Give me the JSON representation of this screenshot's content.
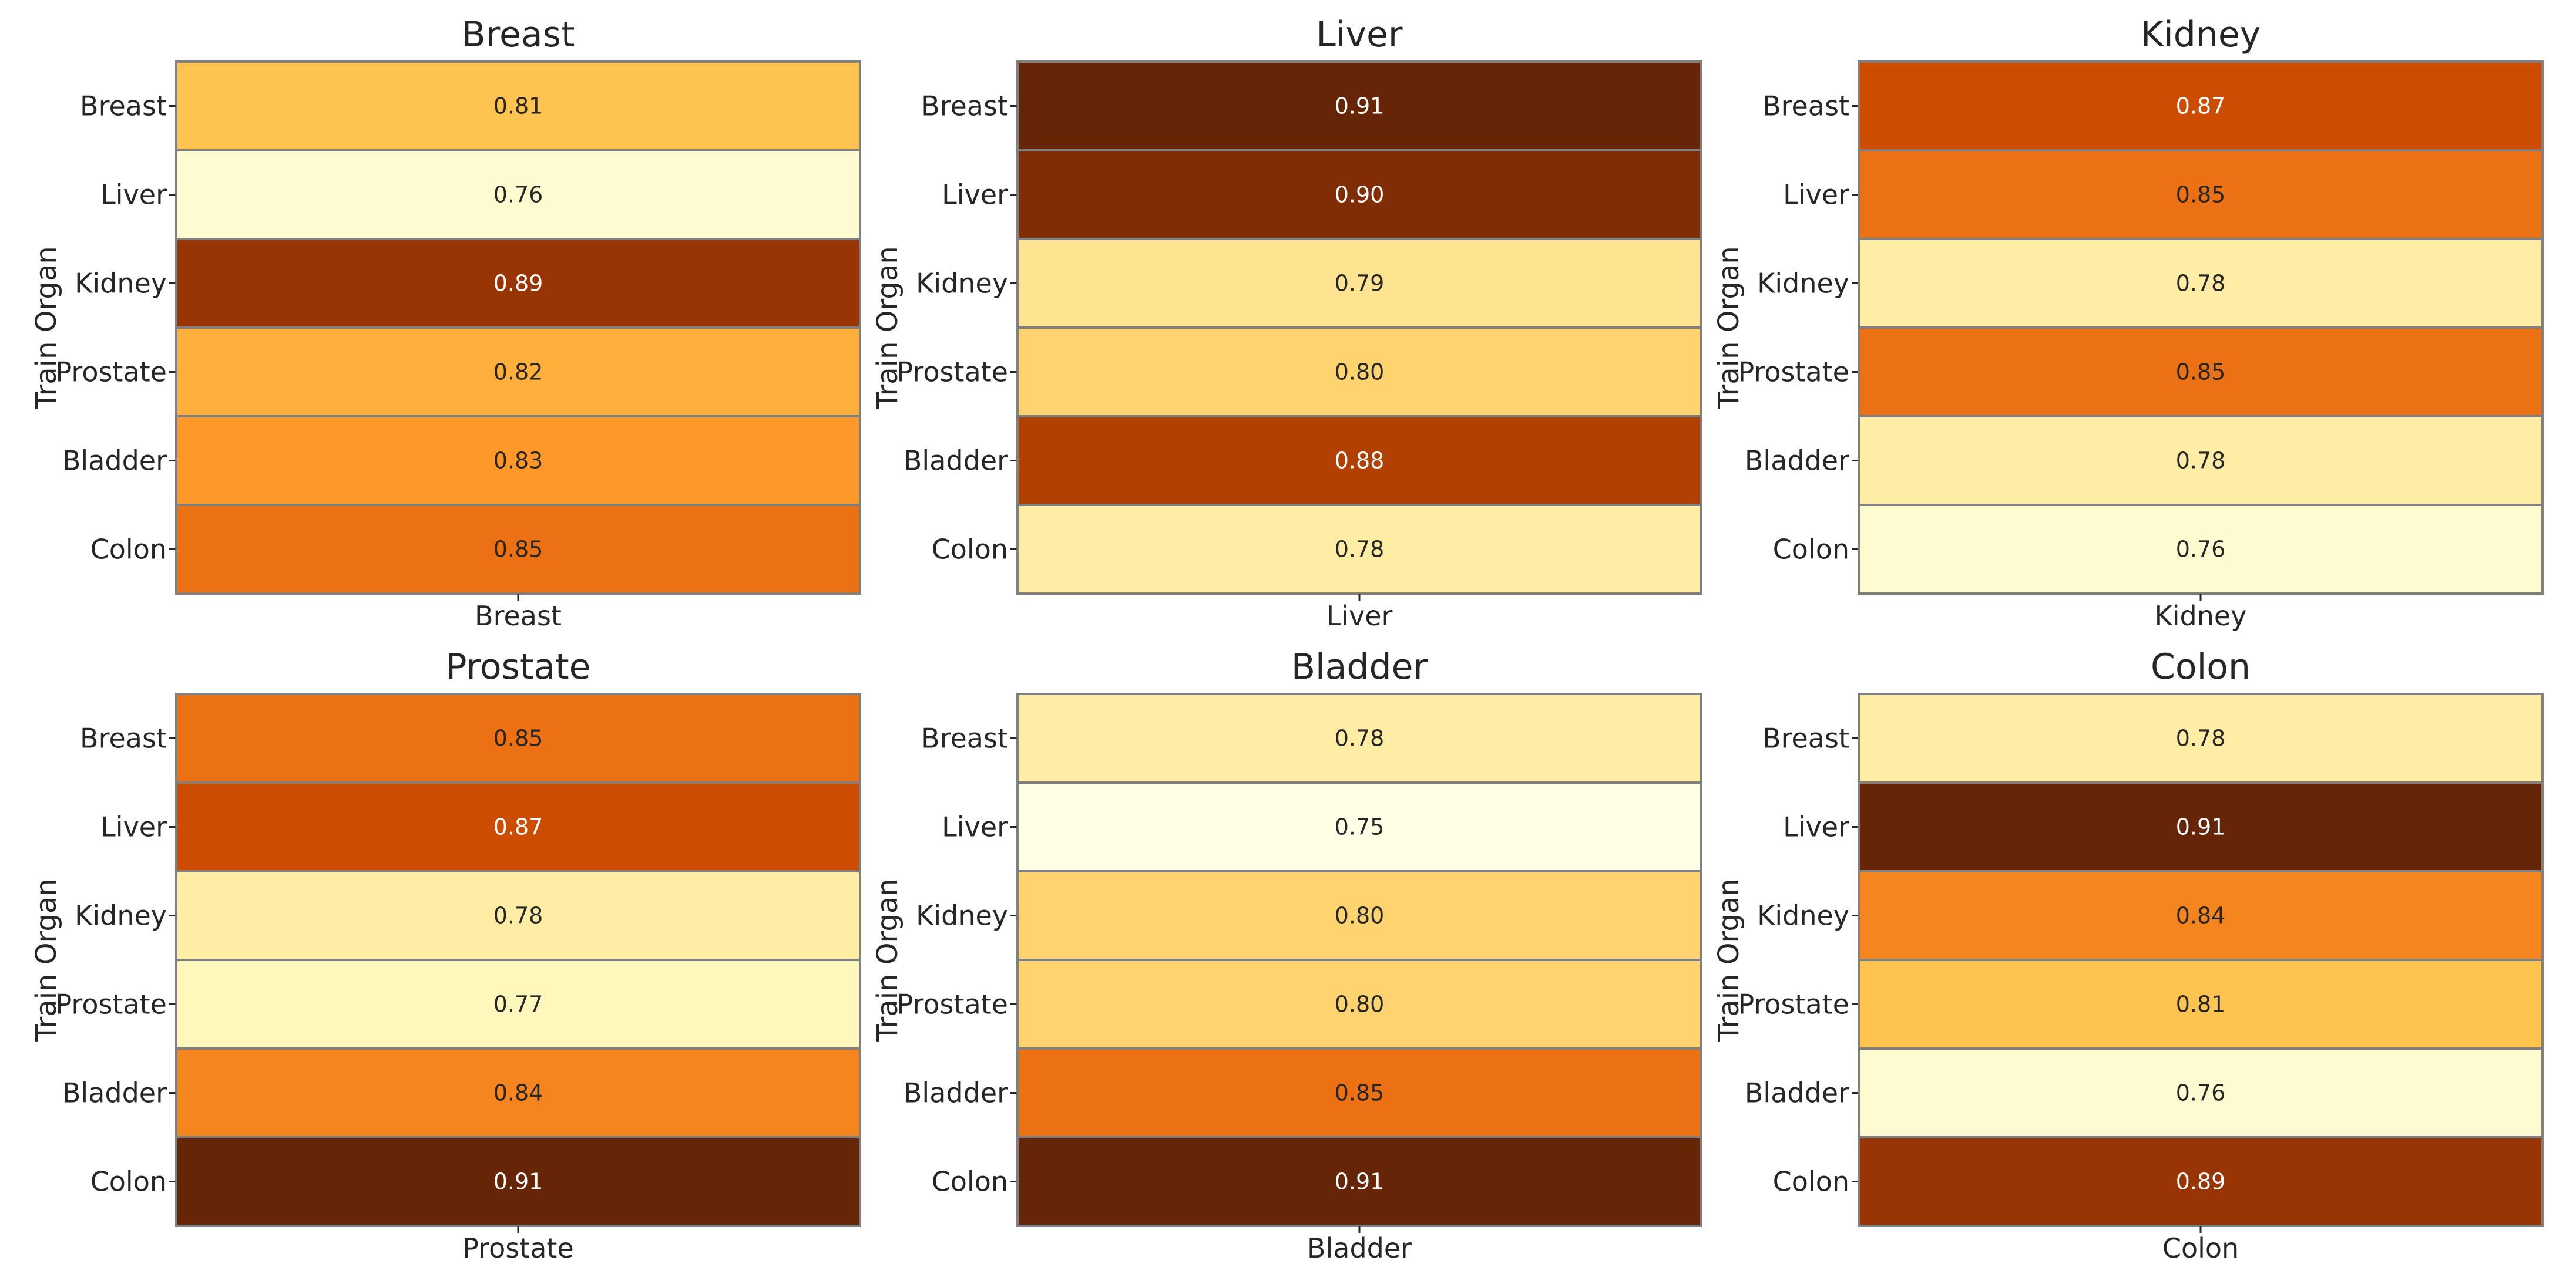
{
  "chart_data": [
    {
      "type": "heatmap",
      "title": "Breast",
      "ylabel": "Train Organ",
      "x_categories": [
        "Breast"
      ],
      "y_categories": [
        "Breast",
        "Liver",
        "Kidney",
        "Prostate",
        "Bladder",
        "Colon"
      ],
      "values": [
        0.81,
        0.76,
        0.89,
        0.82,
        0.83,
        0.85
      ],
      "value_format": "2 decimals",
      "colormap": "YlOrBr",
      "vmin": 0.75,
      "vmax": 0.91
    },
    {
      "type": "heatmap",
      "title": "Liver",
      "ylabel": "Train Organ",
      "x_categories": [
        "Liver"
      ],
      "y_categories": [
        "Breast",
        "Liver",
        "Kidney",
        "Prostate",
        "Bladder",
        "Colon"
      ],
      "values": [
        0.91,
        0.9,
        0.79,
        0.8,
        0.88,
        0.78
      ],
      "value_format": "2 decimals",
      "colormap": "YlOrBr",
      "vmin": 0.75,
      "vmax": 0.91
    },
    {
      "type": "heatmap",
      "title": "Kidney",
      "ylabel": "Train Organ",
      "x_categories": [
        "Kidney"
      ],
      "y_categories": [
        "Breast",
        "Liver",
        "Kidney",
        "Prostate",
        "Bladder",
        "Colon"
      ],
      "values": [
        0.87,
        0.85,
        0.78,
        0.85,
        0.78,
        0.76
      ],
      "value_format": "2 decimals",
      "colormap": "YlOrBr",
      "vmin": 0.75,
      "vmax": 0.91
    },
    {
      "type": "heatmap",
      "title": "Prostate",
      "ylabel": "Train Organ",
      "x_categories": [
        "Prostate"
      ],
      "y_categories": [
        "Breast",
        "Liver",
        "Kidney",
        "Prostate",
        "Bladder",
        "Colon"
      ],
      "values": [
        0.85,
        0.87,
        0.78,
        0.77,
        0.84,
        0.91
      ],
      "value_format": "2 decimals",
      "colormap": "YlOrBr",
      "vmin": 0.75,
      "vmax": 0.91
    },
    {
      "type": "heatmap",
      "title": "Bladder",
      "ylabel": "Train Organ",
      "x_categories": [
        "Bladder"
      ],
      "y_categories": [
        "Breast",
        "Liver",
        "Kidney",
        "Prostate",
        "Bladder",
        "Colon"
      ],
      "values": [
        0.78,
        0.75,
        0.8,
        0.8,
        0.85,
        0.91
      ],
      "value_format": "2 decimals",
      "colormap": "YlOrBr",
      "vmin": 0.75,
      "vmax": 0.91
    },
    {
      "type": "heatmap",
      "title": "Colon",
      "ylabel": "Train Organ",
      "x_categories": [
        "Colon"
      ],
      "y_categories": [
        "Breast",
        "Liver",
        "Kidney",
        "Prostate",
        "Bladder",
        "Colon"
      ],
      "values": [
        0.78,
        0.91,
        0.84,
        0.81,
        0.76,
        0.89
      ],
      "value_format": "2 decimals",
      "colormap": "YlOrBr",
      "vmin": 0.75,
      "vmax": 0.91
    }
  ],
  "colors": {
    "cell_border": "#808080",
    "text_dark": "#262626",
    "text_light": "#ffffff"
  }
}
